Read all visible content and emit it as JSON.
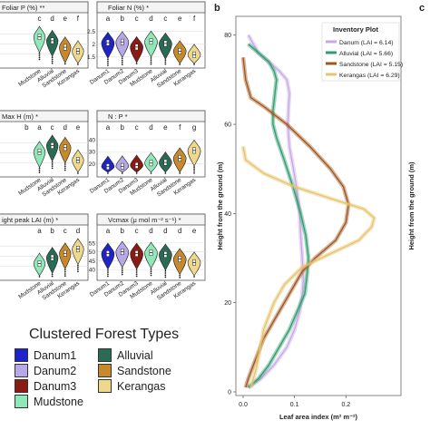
{
  "chart_data": [
    {
      "type": "violin",
      "title": "Foliar P (%) **",
      "categories": [
        "Danum1",
        "Danum2",
        "Danum3",
        "Mudstone",
        "Alluvial",
        "Sandstone",
        "Kerangas"
      ],
      "visible_categories": [
        "Mudstone",
        "Alluvial",
        "Sandstone",
        "Kerangas"
      ],
      "letters": [
        "",
        "",
        "",
        "c",
        "d",
        "e",
        "f"
      ],
      "medians": [
        null,
        null,
        null,
        1.75,
        1.6,
        1.35,
        1.2
      ]
    },
    {
      "type": "violin",
      "title": "Foliar N (%) *",
      "categories": [
        "Danum1",
        "Danum2",
        "Danum3",
        "Mudstone",
        "Alluvial",
        "Sandstone",
        "Kerangas"
      ],
      "letters": [
        "a",
        "b",
        "c",
        "d",
        "c",
        "e",
        "f"
      ],
      "yticks": [
        1.5,
        2.0,
        2.5
      ],
      "ylim": [
        1.2,
        2.8
      ],
      "medians": [
        2.05,
        2.08,
        1.88,
        2.1,
        2.02,
        1.72,
        1.58
      ]
    },
    {
      "type": "violin",
      "title": "Max H (m) *",
      "categories": [
        "Danum1",
        "Danum2",
        "Danum3",
        "Mudstone",
        "Alluvial",
        "Sandstone",
        "Kerangas"
      ],
      "visible_categories": [
        "Danum1",
        "Mudstone",
        "Alluvial",
        "Sandstone",
        "Kerangas"
      ],
      "letters": [
        "",
        "",
        "b",
        "a",
        "c",
        "d",
        "e"
      ],
      "medians": [
        null,
        null,
        30,
        29,
        32,
        31,
        25
      ]
    },
    {
      "type": "violin",
      "title": "N : P *",
      "categories": [
        "Danum1",
        "Danum2",
        "Danum3",
        "Mudstone",
        "Alluvial",
        "Sandstone",
        "Kerangas"
      ],
      "letters": [
        "a",
        "b",
        "c",
        "d",
        "e",
        "f",
        "g"
      ],
      "yticks": [
        20,
        30,
        40
      ],
      "ylim": [
        12,
        46
      ],
      "medians": [
        17.5,
        17.8,
        18.5,
        20.5,
        21,
        24.5,
        31
      ]
    },
    {
      "type": "violin",
      "title": "ight peak LAI (m) *",
      "categories": [
        "Danum1",
        "Danum2",
        "Danum3",
        "Mudstone",
        "Alluvial",
        "Sandstone",
        "Kerangas"
      ],
      "visible_categories": [
        "Mudstone",
        "Alluvial",
        "Sandstone",
        "Kerangas"
      ],
      "letters": [
        "",
        "",
        "",
        "a",
        "b",
        "c",
        "d"
      ],
      "medians": [
        null,
        null,
        null,
        38,
        42,
        45,
        48
      ]
    },
    {
      "type": "violin",
      "title": "Vcmax (μ mol m⁻² s⁻¹) *",
      "categories": [
        "Danum1",
        "Danum2",
        "Danum3",
        "Mudstone",
        "Alluvial",
        "Sandstone",
        "Kerangas"
      ],
      "letters": [
        "a",
        "b",
        "c",
        "d",
        "d",
        "d",
        "e"
      ],
      "yticks": [
        40,
        45,
        50,
        55
      ],
      "ylim": [
        36,
        59
      ],
      "medians": [
        49,
        50,
        49,
        49.5,
        48.5,
        46,
        44
      ]
    },
    {
      "type": "line",
      "panel_label": "b",
      "xlabel": "Leaf area index (m² m⁻²)",
      "ylabel": "Height from the ground (m)",
      "xlim": [
        0,
        0.3
      ],
      "ylim": [
        0,
        83
      ],
      "xticks": [
        0.0,
        0.1,
        0.2
      ],
      "yticks": [
        0,
        20,
        40,
        60,
        80
      ],
      "legend_title": "Inventory Plot",
      "legend_position": "top-right",
      "series": [
        {
          "name": "Danum (LAI = 6.14)",
          "color": "#c9a8e6",
          "points": [
            [
              0.01,
              80
            ],
            [
              0.02,
              78
            ],
            [
              0.03,
              76
            ],
            [
              0.05,
              74
            ],
            [
              0.07,
              72
            ],
            [
              0.085,
              70
            ],
            [
              0.09,
              67
            ],
            [
              0.088,
              63
            ],
            [
              0.087,
              60
            ],
            [
              0.09,
              55
            ],
            [
              0.098,
              50
            ],
            [
              0.105,
              45
            ],
            [
              0.11,
              40
            ],
            [
              0.112,
              35
            ],
            [
              0.115,
              30
            ],
            [
              0.117,
              25
            ],
            [
              0.115,
              22
            ],
            [
              0.11,
              18
            ],
            [
              0.1,
              14
            ],
            [
              0.085,
              10
            ],
            [
              0.06,
              6
            ],
            [
              0.035,
              3
            ],
            [
              0.01,
              1
            ]
          ]
        },
        {
          "name": "Alluvial (LAI = 5.66)",
          "color": "#2e9e6e",
          "points": [
            [
              0.01,
              78
            ],
            [
              0.03,
              76
            ],
            [
              0.05,
              74
            ],
            [
              0.06,
              72
            ],
            [
              0.065,
              70
            ],
            [
              0.062,
              67
            ],
            [
              0.058,
              63
            ],
            [
              0.058,
              60
            ],
            [
              0.065,
              57
            ],
            [
              0.08,
              52
            ],
            [
              0.097,
              46
            ],
            [
              0.112,
              40
            ],
            [
              0.122,
              35
            ],
            [
              0.127,
              30
            ],
            [
              0.124,
              26
            ],
            [
              0.12,
              22
            ],
            [
              0.105,
              18
            ],
            [
              0.09,
              14
            ],
            [
              0.07,
              10
            ],
            [
              0.05,
              6
            ],
            [
              0.03,
              3
            ],
            [
              0.01,
              1
            ]
          ]
        },
        {
          "name": "Sandstone (LAI = 5.15)",
          "color": "#a0561c",
          "points": [
            [
              0.0,
              75
            ],
            [
              0.005,
              70
            ],
            [
              0.015,
              66
            ],
            [
              0.04,
              64
            ],
            [
              0.085,
              60
            ],
            [
              0.13,
              55
            ],
            [
              0.17,
              50
            ],
            [
              0.195,
              46
            ],
            [
              0.205,
              42
            ],
            [
              0.2,
              38
            ],
            [
              0.18,
              34
            ],
            [
              0.14,
              30
            ],
            [
              0.115,
              27
            ],
            [
              0.1,
              24
            ],
            [
              0.085,
              21
            ],
            [
              0.07,
              18
            ],
            [
              0.055,
              15
            ],
            [
              0.04,
              12
            ],
            [
              0.03,
              9
            ],
            [
              0.02,
              6
            ],
            [
              0.01,
              3
            ],
            [
              0.005,
              1
            ]
          ]
        },
        {
          "name": "Kerangas (LAI = 6.29)",
          "color": "#e6c46a",
          "points": [
            [
              0.0,
              55
            ],
            [
              0.005,
              52
            ],
            [
              0.04,
              49
            ],
            [
              0.1,
              46
            ],
            [
              0.18,
              43
            ],
            [
              0.235,
              41
            ],
            [
              0.255,
              39
            ],
            [
              0.25,
              37
            ],
            [
              0.225,
              34
            ],
            [
              0.17,
              31
            ],
            [
              0.115,
              28
            ],
            [
              0.08,
              24
            ],
            [
              0.06,
              20
            ],
            [
              0.05,
              17
            ],
            [
              0.04,
              14
            ],
            [
              0.035,
              11
            ],
            [
              0.03,
              8
            ],
            [
              0.025,
              5
            ],
            [
              0.02,
              3
            ],
            [
              0.015,
              1
            ]
          ]
        }
      ]
    }
  ],
  "panel_c_label": "c",
  "panel_c_ylabel": "Height from the ground (m)",
  "legend": {
    "title": "Clustered Forest Types",
    "items": [
      {
        "label": "Danum1",
        "color": "#1f24c8"
      },
      {
        "label": "Alluvial",
        "color": "#2b6b55"
      },
      {
        "label": "Danum2",
        "color": "#b7a8e8"
      },
      {
        "label": "Sandstone",
        "color": "#c8892b"
      },
      {
        "label": "Danum3",
        "color": "#8b1a12"
      },
      {
        "label": "Kerangas",
        "color": "#eed98a"
      },
      {
        "label": "Mudstone",
        "color": "#8fe8b8"
      }
    ]
  }
}
